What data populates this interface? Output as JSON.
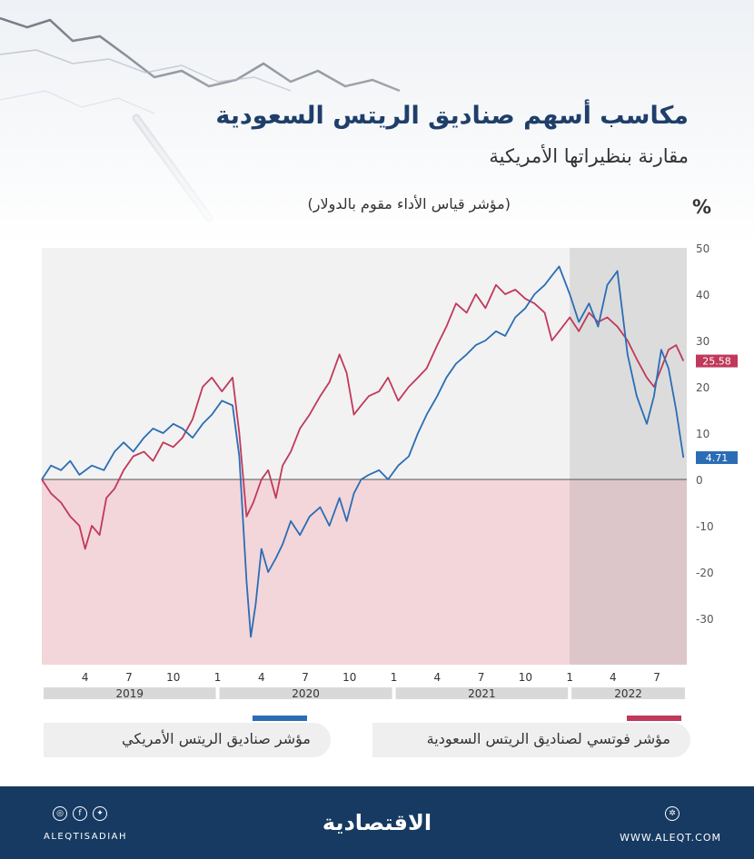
{
  "header": {
    "title": "مكاسب أسهم صناديق الريتس السعودية",
    "subtitle": "مقارنة بنظيراتها الأمريكية",
    "ylabel": "(مؤشر قياس الأداء مقوم بالدولار)",
    "unit": "%"
  },
  "legend": {
    "us": "مؤشر صناديق الريتس الأمريكي",
    "saudi": "مؤشر فوتسي لصناديق الريتس السعودية"
  },
  "colors": {
    "saudi": "#c0395a",
    "us": "#2a6db5",
    "positive_bg": "#f2f2f2",
    "negative_bg": "#f3d6da",
    "highlight_2022": "#8f8f8f",
    "year_band": "#d9d9d9",
    "footer": "#173a62"
  },
  "footer": {
    "handle": "ALEQTISADIAH",
    "url": "WWW.ALEQT.COM",
    "logo": "الاقتصادية",
    "icons": [
      "instagram-icon",
      "facebook-icon",
      "twitter-icon",
      "globe-icon"
    ]
  },
  "chart_data": {
    "type": "line",
    "ylim": [
      -40,
      50
    ],
    "yticks": [
      50,
      40,
      30,
      20,
      10,
      0,
      -10,
      -20,
      -30
    ],
    "x_range": [
      "2019-01",
      "2022-09"
    ],
    "month_ticks": [
      {
        "label": "4",
        "date": "2019-04"
      },
      {
        "label": "7",
        "date": "2019-07"
      },
      {
        "label": "10",
        "date": "2019-10"
      },
      {
        "label": "1",
        "date": "2020-01"
      },
      {
        "label": "4",
        "date": "2020-04"
      },
      {
        "label": "7",
        "date": "2020-07"
      },
      {
        "label": "10",
        "date": "2020-10"
      },
      {
        "label": "1",
        "date": "2021-01"
      },
      {
        "label": "4",
        "date": "2021-04"
      },
      {
        "label": "7",
        "date": "2021-07"
      },
      {
        "label": "10",
        "date": "2021-10"
      },
      {
        "label": "1",
        "date": "2022-01"
      },
      {
        "label": "4",
        "date": "2022-04"
      },
      {
        "label": "7",
        "date": "2022-07"
      }
    ],
    "years": [
      {
        "label": "2019",
        "start": "2019-01",
        "end": "2020-01"
      },
      {
        "label": "2020",
        "start": "2020-01",
        "end": "2021-01"
      },
      {
        "label": "2021",
        "start": "2021-01",
        "end": "2022-01"
      },
      {
        "label": "2022",
        "start": "2022-01",
        "end": "2022-09"
      }
    ],
    "highlight_period": [
      "2022-01",
      "2022-09"
    ],
    "series": [
      {
        "name": "مؤشر فوتسي لصناديق الريتس السعودية",
        "color": "#c0395a",
        "last_value": "25.58",
        "points": [
          [
            "2019-01-01",
            0
          ],
          [
            "2019-01-20",
            -3
          ],
          [
            "2019-02-10",
            -5
          ],
          [
            "2019-03-01",
            -8
          ],
          [
            "2019-03-20",
            -10
          ],
          [
            "2019-04-01",
            -15
          ],
          [
            "2019-04-15",
            -10
          ],
          [
            "2019-05-01",
            -12
          ],
          [
            "2019-05-15",
            -4
          ],
          [
            "2019-06-01",
            -2
          ],
          [
            "2019-06-20",
            2
          ],
          [
            "2019-07-10",
            5
          ],
          [
            "2019-08-01",
            6
          ],
          [
            "2019-08-20",
            4
          ],
          [
            "2019-09-10",
            8
          ],
          [
            "2019-10-01",
            7
          ],
          [
            "2019-10-20",
            9
          ],
          [
            "2019-11-10",
            13
          ],
          [
            "2019-12-01",
            20
          ],
          [
            "2019-12-20",
            22
          ],
          [
            "2020-01-10",
            19
          ],
          [
            "2020-02-01",
            22
          ],
          [
            "2020-02-15",
            10
          ],
          [
            "2020-03-01",
            -8
          ],
          [
            "2020-03-15",
            -5
          ],
          [
            "2020-04-01",
            0
          ],
          [
            "2020-04-15",
            2
          ],
          [
            "2020-05-01",
            -4
          ],
          [
            "2020-05-15",
            3
          ],
          [
            "2020-06-01",
            6
          ],
          [
            "2020-06-20",
            11
          ],
          [
            "2020-07-10",
            14
          ],
          [
            "2020-08-01",
            18
          ],
          [
            "2020-08-20",
            21
          ],
          [
            "2020-09-10",
            27
          ],
          [
            "2020-09-25",
            23
          ],
          [
            "2020-10-10",
            14
          ],
          [
            "2020-10-25",
            16
          ],
          [
            "2020-11-10",
            18
          ],
          [
            "2020-12-01",
            19
          ],
          [
            "2020-12-20",
            22
          ],
          [
            "2021-01-10",
            17
          ],
          [
            "2021-02-01",
            20
          ],
          [
            "2021-02-20",
            22
          ],
          [
            "2021-03-10",
            24
          ],
          [
            "2021-04-01",
            29
          ],
          [
            "2021-04-20",
            33
          ],
          [
            "2021-05-10",
            38
          ],
          [
            "2021-06-01",
            36
          ],
          [
            "2021-06-20",
            40
          ],
          [
            "2021-07-10",
            37
          ],
          [
            "2021-08-01",
            42
          ],
          [
            "2021-08-20",
            40
          ],
          [
            "2021-09-10",
            41
          ],
          [
            "2021-10-01",
            39
          ],
          [
            "2021-10-20",
            38
          ],
          [
            "2021-11-10",
            36
          ],
          [
            "2021-11-25",
            30
          ],
          [
            "2021-12-10",
            32
          ],
          [
            "2022-01-01",
            35
          ],
          [
            "2022-01-20",
            32
          ],
          [
            "2022-02-10",
            36
          ],
          [
            "2022-03-01",
            34
          ],
          [
            "2022-03-20",
            35
          ],
          [
            "2022-04-10",
            33
          ],
          [
            "2022-05-01",
            30
          ],
          [
            "2022-05-20",
            26
          ],
          [
            "2022-06-10",
            22
          ],
          [
            "2022-06-25",
            20
          ],
          [
            "2022-07-10",
            24
          ],
          [
            "2022-07-25",
            28
          ],
          [
            "2022-08-10",
            29
          ],
          [
            "2022-08-25",
            25.58
          ]
        ]
      },
      {
        "name": "مؤشر صناديق الريتس الأمريكي",
        "color": "#2a6db5",
        "last_value": "4.71",
        "points": [
          [
            "2019-01-01",
            0
          ],
          [
            "2019-01-20",
            3
          ],
          [
            "2019-02-10",
            2
          ],
          [
            "2019-03-01",
            4
          ],
          [
            "2019-03-20",
            1
          ],
          [
            "2019-04-15",
            3
          ],
          [
            "2019-05-10",
            2
          ],
          [
            "2019-06-01",
            6
          ],
          [
            "2019-06-20",
            8
          ],
          [
            "2019-07-10",
            6
          ],
          [
            "2019-08-01",
            9
          ],
          [
            "2019-08-20",
            11
          ],
          [
            "2019-09-10",
            10
          ],
          [
            "2019-10-01",
            12
          ],
          [
            "2019-10-20",
            11
          ],
          [
            "2019-11-10",
            9
          ],
          [
            "2019-12-01",
            12
          ],
          [
            "2019-12-20",
            14
          ],
          [
            "2020-01-10",
            17
          ],
          [
            "2020-02-01",
            16
          ],
          [
            "2020-02-15",
            5
          ],
          [
            "2020-03-01",
            -22
          ],
          [
            "2020-03-10",
            -34
          ],
          [
            "2020-03-20",
            -27
          ],
          [
            "2020-04-01",
            -15
          ],
          [
            "2020-04-15",
            -20
          ],
          [
            "2020-05-01",
            -17
          ],
          [
            "2020-05-15",
            -14
          ],
          [
            "2020-06-01",
            -9
          ],
          [
            "2020-06-20",
            -12
          ],
          [
            "2020-07-10",
            -8
          ],
          [
            "2020-08-01",
            -6
          ],
          [
            "2020-08-20",
            -10
          ],
          [
            "2020-09-10",
            -4
          ],
          [
            "2020-09-25",
            -9
          ],
          [
            "2020-10-10",
            -3
          ],
          [
            "2020-10-25",
            0
          ],
          [
            "2020-11-10",
            1
          ],
          [
            "2020-12-01",
            2
          ],
          [
            "2020-12-20",
            0
          ],
          [
            "2021-01-10",
            3
          ],
          [
            "2021-02-01",
            5
          ],
          [
            "2021-02-20",
            10
          ],
          [
            "2021-03-10",
            14
          ],
          [
            "2021-04-01",
            18
          ],
          [
            "2021-04-20",
            22
          ],
          [
            "2021-05-10",
            25
          ],
          [
            "2021-06-01",
            27
          ],
          [
            "2021-06-20",
            29
          ],
          [
            "2021-07-10",
            30
          ],
          [
            "2021-08-01",
            32
          ],
          [
            "2021-08-20",
            31
          ],
          [
            "2021-09-10",
            35
          ],
          [
            "2021-10-01",
            37
          ],
          [
            "2021-10-20",
            40
          ],
          [
            "2021-11-10",
            42
          ],
          [
            "2021-11-25",
            44
          ],
          [
            "2021-12-10",
            46
          ],
          [
            "2022-01-01",
            40
          ],
          [
            "2022-01-20",
            34
          ],
          [
            "2022-02-10",
            38
          ],
          [
            "2022-03-01",
            33
          ],
          [
            "2022-03-20",
            42
          ],
          [
            "2022-04-10",
            45
          ],
          [
            "2022-05-01",
            27
          ],
          [
            "2022-05-20",
            18
          ],
          [
            "2022-06-10",
            12
          ],
          [
            "2022-06-25",
            18
          ],
          [
            "2022-07-10",
            28
          ],
          [
            "2022-07-25",
            24
          ],
          [
            "2022-08-10",
            15
          ],
          [
            "2022-08-25",
            4.71
          ]
        ]
      }
    ]
  }
}
